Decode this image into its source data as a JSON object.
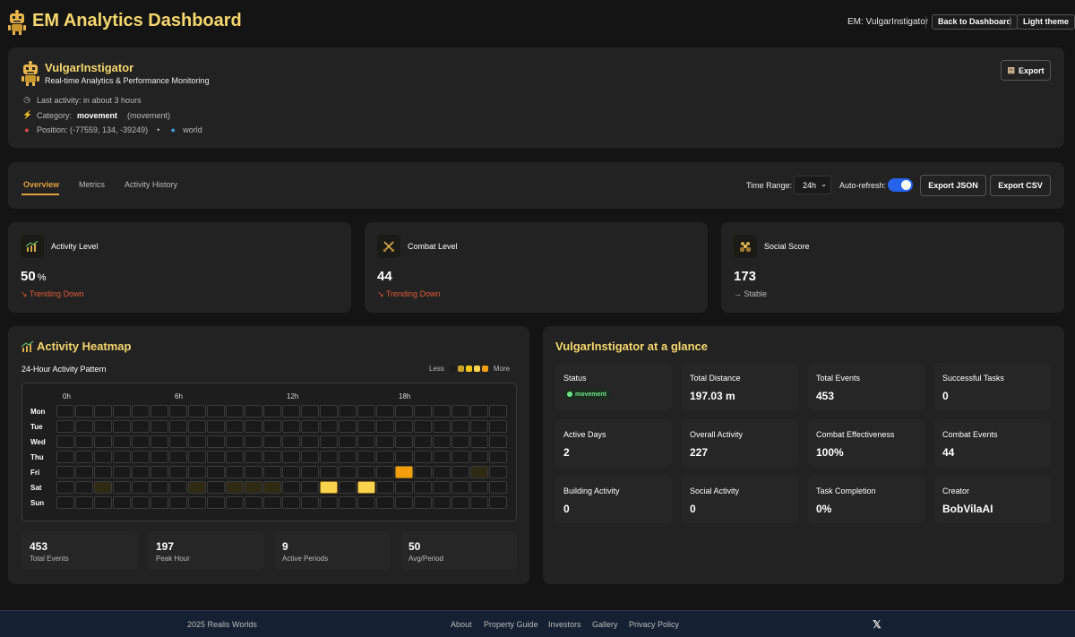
{
  "header": {
    "title": "EM Analytics Dashboard",
    "em_label": "EM: VulgarInstigator",
    "back_button": "Back to Dashboard",
    "theme_button": "Light theme"
  },
  "profile": {
    "name": "VulgarInstigator",
    "subtitle": "Real-time Analytics & Performance Monitoring",
    "last_activity": "Last activity: in about 3 hours",
    "category_prefix": "Category:",
    "category": "movement",
    "category_paren": "(movement)",
    "position": "Position: (-77559, 134, -39249)",
    "bullet": "•",
    "world": "world",
    "export_label": "Export"
  },
  "tabs": [
    {
      "label": "Overview",
      "active": true
    },
    {
      "label": "Metrics",
      "active": false
    },
    {
      "label": "Activity History",
      "active": false
    }
  ],
  "controls": {
    "time_range_label": "Time Range:",
    "time_range_value": "24h",
    "auto_refresh_label": "Auto-refresh:",
    "auto_refresh_on": true,
    "export_json": "Export JSON",
    "export_csv": "Export CSV"
  },
  "stats": [
    {
      "label": "Activity Level",
      "value": "50",
      "unit": "%",
      "trend": "↘ Trending Down",
      "trend_type": "down",
      "icon": "chart-icon"
    },
    {
      "label": "Combat Level",
      "value": "44",
      "unit": "",
      "trend": "↘ Trending Down",
      "trend_type": "down",
      "icon": "swords-icon"
    },
    {
      "label": "Social Score",
      "value": "173",
      "unit": "",
      "trend": "→ Stable",
      "trend_type": "stable",
      "icon": "people-icon"
    }
  ],
  "heatmap": {
    "title": "Activity Heatmap",
    "subtitle": "24-Hour Activity Pattern",
    "legend_less": "Less",
    "legend_more": "More",
    "hour_labels": [
      "0h",
      "6h",
      "12h",
      "18h"
    ],
    "days": [
      "Mon",
      "Tue",
      "Wed",
      "Thu",
      "Fri",
      "Sat",
      "Sun"
    ],
    "active_cells": [
      {
        "day": 4,
        "hour": 18,
        "level": 3
      },
      {
        "day": 4,
        "hour": 22,
        "level": 1
      },
      {
        "day": 5,
        "hour": 2,
        "level": 1
      },
      {
        "day": 5,
        "hour": 7,
        "level": 1
      },
      {
        "day": 5,
        "hour": 9,
        "level": 1
      },
      {
        "day": 5,
        "hour": 10,
        "level": 1
      },
      {
        "day": 5,
        "hour": 11,
        "level": 1
      },
      {
        "day": 5,
        "hour": 14,
        "level": 4
      },
      {
        "day": 5,
        "hour": 16,
        "level": 4
      }
    ],
    "colors": {
      "0": "#191919",
      "1": "#2e2a14",
      "3": "#f59e0b",
      "4": "#fcd34d"
    },
    "legend_colors": [
      "#1b1b1b",
      "#c9a227",
      "#f5c518",
      "#fcd34d",
      "#f59e0b"
    ],
    "summary": [
      {
        "value": "453",
        "label": "Total Events"
      },
      {
        "value": "197",
        "label": "Peak Hour"
      },
      {
        "value": "9",
        "label": "Active Periods"
      },
      {
        "value": "50",
        "label": "Avg/Period"
      }
    ]
  },
  "glance": {
    "title": "VulgarInstigator at a glance",
    "status_label": "Status",
    "status_value": "movement",
    "cells": [
      {
        "label": "Total Distance",
        "value": "197.03 m"
      },
      {
        "label": "Total Events",
        "value": "453"
      },
      {
        "label": "Successful Tasks",
        "value": "0"
      },
      {
        "label": "Active Days",
        "value": "2"
      },
      {
        "label": "Overall Activity",
        "value": "227"
      },
      {
        "label": "Combat Effectiveness",
        "value": "100%"
      },
      {
        "label": "Combat Events",
        "value": "44"
      },
      {
        "label": "Building Activity",
        "value": "0"
      },
      {
        "label": "Social Activity",
        "value": "0"
      },
      {
        "label": "Task Completion",
        "value": "0%"
      },
      {
        "label": "Creator",
        "value": "BobVilaAI"
      }
    ]
  },
  "footer": {
    "copyright": "2025 Realis Worlds",
    "links": [
      "About",
      "Property Guide",
      "Investors",
      "Gallery",
      "Privacy Policy"
    ],
    "x_icon": "𝕏"
  }
}
